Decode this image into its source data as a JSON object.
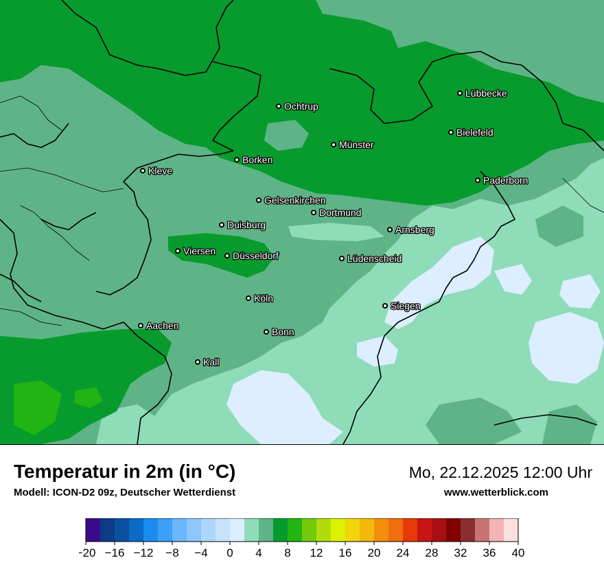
{
  "title": "Temperatur in 2m (in °C)",
  "subtitle": "Modell: ICON-D2 09z, Deutscher Wetterdienst",
  "datetime": "Mo, 22.12.2025 12:00 Uhr",
  "website": "www.wetterblick.com",
  "cities": [
    "Lübbecke",
    "Ochtrup",
    "Bielefeld",
    "Münster",
    "Borken",
    "Kleve",
    "Paderborn",
    "Gelsenkirchen",
    "Dortmund",
    "Duisburg",
    "Arnsberg",
    "Viersen",
    "Düsseldorf",
    "Lüdenscheid",
    "Köln",
    "Siegen",
    "Aachen",
    "Bonn",
    "Kall"
  ],
  "legend": {
    "colors": [
      "#3a0a8c",
      "#0d3b86",
      "#0b4fa0",
      "#0a6cc8",
      "#1a8cf0",
      "#3aa0f8",
      "#6cb8fb",
      "#8ec6fb",
      "#aed6fb",
      "#c6e2fc",
      "#dceeff",
      "#8edcb8",
      "#5fb487",
      "#079b2e",
      "#22b413",
      "#74ca0b",
      "#b2dc09",
      "#dcf200",
      "#f2d50a",
      "#f2b80a",
      "#f28f0d",
      "#f06e0d",
      "#e6380a",
      "#c81414",
      "#a80f14",
      "#820000",
      "#8a2e2e",
      "#c87474",
      "#f2b4b4",
      "#fce0e0"
    ],
    "tick_labels": [
      "−20",
      "−16",
      "−12",
      "−8",
      "−4",
      "0",
      "4",
      "8",
      "12",
      "16",
      "20",
      "24",
      "28",
      "32",
      "36",
      "40"
    ],
    "range": [
      -20,
      40
    ],
    "step": 2
  },
  "palette": {
    "base": "#5fb487",
    "warm": "#079b2e",
    "mild": "#8edcb8",
    "cold": "#dceeff",
    "bright": "#22b413"
  }
}
